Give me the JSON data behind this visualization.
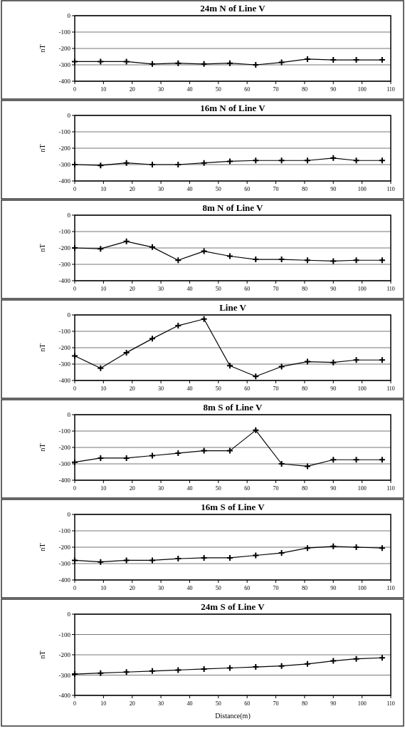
{
  "chart_data": [
    {
      "type": "line",
      "title": "24m N of Line V",
      "ylabel": "nT",
      "x": [
        0,
        9,
        18,
        27,
        36,
        45,
        54,
        63,
        72,
        81,
        90,
        98,
        107
      ],
      "series": [
        {
          "color": "#000000",
          "values": [
            -280,
            -280,
            -280,
            -295,
            -290,
            -295,
            -290,
            -300,
            -285,
            -265,
            -270,
            -270,
            -270
          ]
        }
      ],
      "xlim": [
        0,
        110
      ],
      "ylim": [
        -400,
        0
      ],
      "xticks": [
        0,
        10,
        20,
        30,
        40,
        50,
        60,
        70,
        80,
        90,
        100,
        110
      ],
      "yticks": [
        -400,
        -300,
        -200,
        -100,
        0
      ],
      "grid": "y",
      "marker": "cross"
    },
    {
      "type": "line",
      "title": "16m N of Line V",
      "ylabel": "nT",
      "x": [
        0,
        9,
        18,
        27,
        36,
        45,
        54,
        63,
        72,
        81,
        90,
        98,
        107
      ],
      "series": [
        {
          "color": "#000000",
          "values": [
            -300,
            -305,
            -290,
            -300,
            -300,
            -290,
            -280,
            -275,
            -275,
            -275,
            -260,
            -275,
            -275
          ]
        }
      ],
      "xlim": [
        0,
        110
      ],
      "ylim": [
        -400,
        0
      ],
      "xticks": [
        0,
        10,
        20,
        30,
        40,
        50,
        60,
        70,
        80,
        90,
        100,
        110
      ],
      "yticks": [
        -400,
        -300,
        -200,
        -100,
        0
      ],
      "grid": "y",
      "marker": "cross"
    },
    {
      "type": "line",
      "title": "8m N of Line V",
      "ylabel": "nT",
      "x": [
        0,
        9,
        18,
        27,
        36,
        45,
        54,
        63,
        72,
        81,
        90,
        98,
        107
      ],
      "series": [
        {
          "color": "#000000",
          "values": [
            -200,
            -205,
            -160,
            -195,
            -275,
            -220,
            -250,
            -270,
            -270,
            -275,
            -280,
            -275,
            -275
          ]
        }
      ],
      "xlim": [
        0,
        110
      ],
      "ylim": [
        -400,
        0
      ],
      "xticks": [
        0,
        10,
        20,
        30,
        40,
        50,
        60,
        70,
        80,
        90,
        100,
        110
      ],
      "yticks": [
        -400,
        -300,
        -200,
        -100,
        0
      ],
      "grid": "y",
      "marker": "cross"
    },
    {
      "type": "line",
      "title": "Line V",
      "ylabel": "nT",
      "x": [
        0,
        9,
        18,
        27,
        36,
        45,
        54,
        63,
        72,
        81,
        90,
        98,
        107
      ],
      "series": [
        {
          "color": "#000000",
          "values": [
            -250,
            -325,
            -230,
            -145,
            -65,
            -25,
            -310,
            -375,
            -315,
            -285,
            -290,
            -275,
            -275
          ]
        }
      ],
      "xlim": [
        0,
        110
      ],
      "ylim": [
        -400,
        0
      ],
      "xticks": [
        0,
        10,
        20,
        30,
        40,
        50,
        60,
        70,
        80,
        90,
        100,
        110
      ],
      "yticks": [
        -400,
        -300,
        -200,
        -100,
        0
      ],
      "grid": "y",
      "marker": "cross"
    },
    {
      "type": "line",
      "title": "8m S of Line V",
      "ylabel": "nT",
      "x": [
        0,
        9,
        18,
        27,
        36,
        45,
        54,
        63,
        72,
        81,
        90,
        98,
        107
      ],
      "series": [
        {
          "color": "#000000",
          "values": [
            -290,
            -265,
            -265,
            -250,
            -235,
            -220,
            -220,
            -95,
            -300,
            -315,
            -275,
            -275,
            -275
          ]
        }
      ],
      "xlim": [
        0,
        110
      ],
      "ylim": [
        -400,
        0
      ],
      "xticks": [
        0,
        10,
        20,
        30,
        40,
        50,
        60,
        70,
        80,
        90,
        100,
        110
      ],
      "yticks": [
        -400,
        -300,
        -200,
        -100,
        0
      ],
      "grid": "y",
      "marker": "cross"
    },
    {
      "type": "line",
      "title": "16m S of Line V",
      "ylabel": "nT",
      "x": [
        0,
        9,
        18,
        27,
        36,
        45,
        54,
        63,
        72,
        81,
        90,
        98,
        107
      ],
      "series": [
        {
          "color": "#000000",
          "values": [
            -280,
            -290,
            -280,
            -280,
            -270,
            -265,
            -265,
            -250,
            -235,
            -205,
            -195,
            -200,
            -205
          ]
        }
      ],
      "xlim": [
        0,
        110
      ],
      "ylim": [
        -400,
        0
      ],
      "xticks": [
        0,
        10,
        20,
        30,
        40,
        50,
        60,
        70,
        80,
        90,
        100,
        110
      ],
      "yticks": [
        -400,
        -300,
        -200,
        -100,
        0
      ],
      "grid": "y",
      "marker": "cross"
    },
    {
      "type": "line",
      "title": "24m S of Line V",
      "ylabel": "nT",
      "xlabel": "Distance(m)",
      "x": [
        0,
        9,
        18,
        27,
        36,
        45,
        54,
        63,
        72,
        81,
        90,
        98,
        107
      ],
      "series": [
        {
          "color": "#000000",
          "values": [
            -295,
            -290,
            -285,
            -280,
            -275,
            -270,
            -265,
            -260,
            -255,
            -245,
            -230,
            -220,
            -215
          ]
        }
      ],
      "xlim": [
        0,
        110
      ],
      "ylim": [
        -400,
        0
      ],
      "xticks": [
        0,
        10,
        20,
        30,
        40,
        50,
        60,
        70,
        80,
        90,
        100,
        110
      ],
      "yticks": [
        -400,
        -300,
        -200,
        -100,
        0
      ],
      "grid": "y",
      "marker": "cross"
    }
  ]
}
